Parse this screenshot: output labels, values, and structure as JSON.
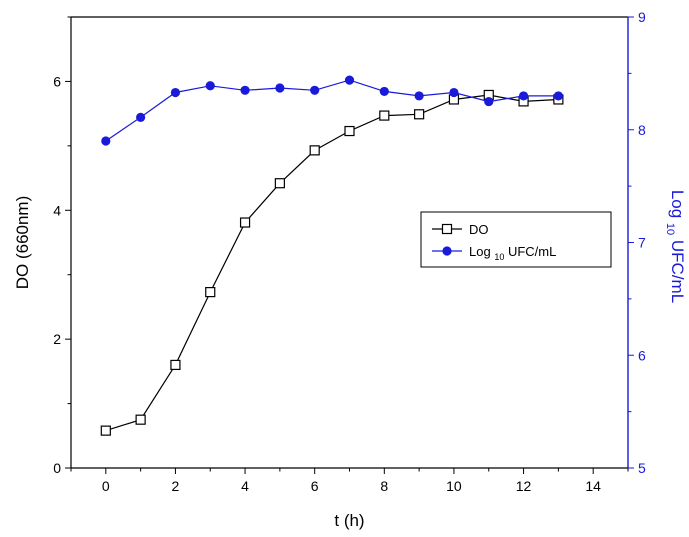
{
  "chart_data": {
    "type": "line",
    "x": [
      0,
      1,
      2,
      3,
      4,
      5,
      6,
      7,
      8,
      9,
      10,
      11,
      12,
      13
    ],
    "xlabel": "t (h)",
    "xlim": [
      -1,
      15
    ],
    "xticks": [
      0,
      2,
      4,
      6,
      8,
      10,
      12,
      14
    ],
    "ylabel_left": "DO (660nm)",
    "ylim_left": [
      0,
      7
    ],
    "yticks_left": [
      0,
      2,
      4,
      6
    ],
    "ylabel_right": {
      "pre": "Log ",
      "sub": "10",
      "post": " UFC/mL"
    },
    "ylim_right": [
      5,
      9
    ],
    "yticks_right": [
      5,
      6,
      7,
      8,
      9
    ],
    "right_axis_color": "#1a1adb",
    "grid": false,
    "legend_position": "center-right",
    "series": [
      {
        "name": "DO",
        "axis": "left",
        "color": "#000000",
        "marker": "open-square",
        "values": [
          0.58,
          0.75,
          1.6,
          2.73,
          3.81,
          4.42,
          4.93,
          5.23,
          5.47,
          5.49,
          5.72,
          5.79,
          5.69,
          5.72
        ]
      },
      {
        "name": "Log 10 UFC/mL",
        "legend_parts": {
          "pre": "Log ",
          "sub": "10",
          "post": " UFC/mL"
        },
        "axis": "right",
        "color": "#1a1adb",
        "marker": "filled-circle",
        "values": [
          7.9,
          8.11,
          8.33,
          8.39,
          8.35,
          8.37,
          8.35,
          8.44,
          8.34,
          8.3,
          8.33,
          8.25,
          8.3,
          8.3
        ]
      }
    ]
  }
}
